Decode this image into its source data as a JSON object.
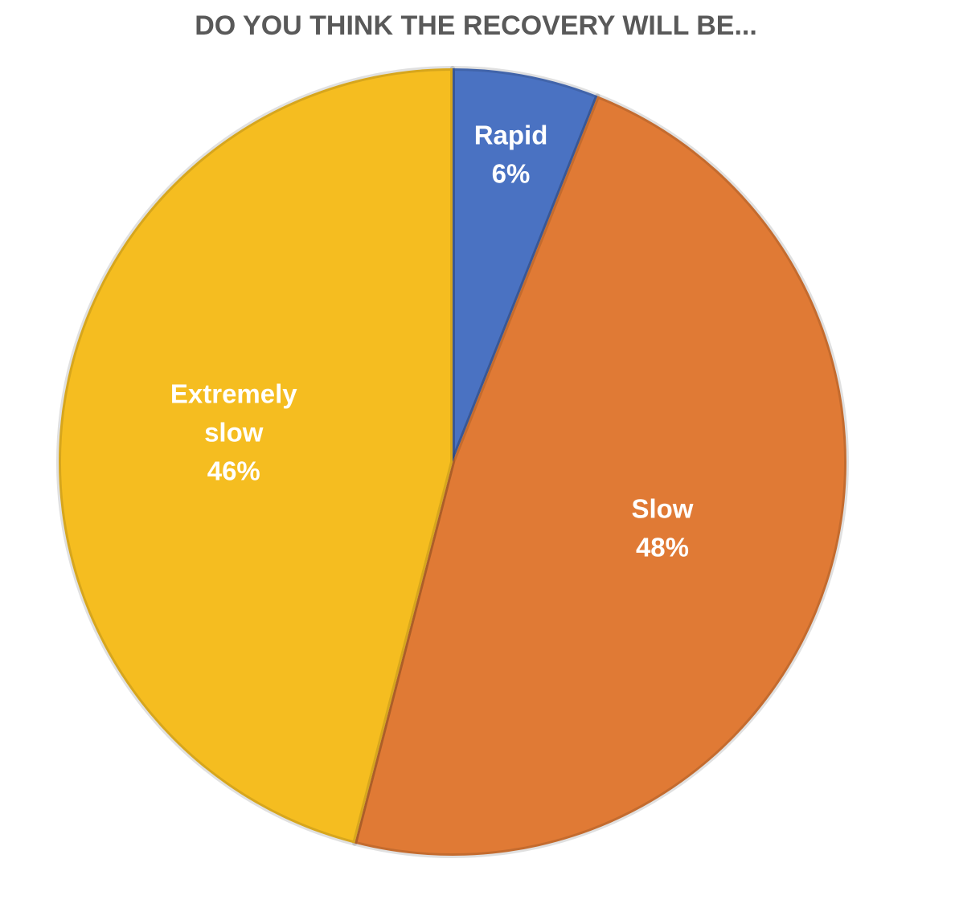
{
  "chart_data": {
    "type": "pie",
    "title": "DO YOU THINK THE RECOVERY WILL BE...",
    "categories": [
      "Rapid",
      "Slow",
      "Extremely slow"
    ],
    "values": [
      6,
      48,
      46
    ],
    "value_labels": [
      "6%",
      "48%",
      "46%"
    ],
    "colors": [
      "#4a72c2",
      "#e07a35",
      "#f5bd20"
    ]
  }
}
